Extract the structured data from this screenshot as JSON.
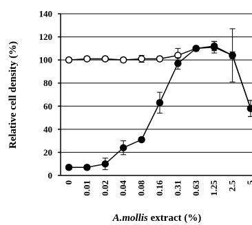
{
  "chart_data": {
    "type": "line",
    "xlabel": {
      "italic": "A.mollis",
      "rest": " extract (%)"
    },
    "ylabel": "Relative cell density (%)",
    "ylim": [
      0,
      140
    ],
    "yticks": [
      0,
      20,
      40,
      60,
      80,
      100,
      120,
      140
    ],
    "grid": true,
    "legend": "none",
    "categories": [
      "0",
      "0.01",
      "0.02",
      "0.04",
      "0.08",
      "0.16",
      "0.31",
      "0.63",
      "1.25",
      "2.5",
      "5"
    ],
    "series": [
      {
        "marker": "open-circle",
        "color": "#000000",
        "values": [
          100,
          101,
          101,
          100,
          101,
          101,
          104,
          110,
          112,
          104,
          58
        ],
        "errors": [
          2,
          2,
          2,
          2,
          3,
          2,
          6,
          2,
          4,
          23,
          7
        ]
      },
      {
        "marker": "filled-circle",
        "color": "#000000",
        "values": [
          7,
          7,
          10,
          24,
          31,
          63,
          97,
          110,
          111,
          104,
          58
        ],
        "errors": [
          2,
          2,
          5,
          6,
          2,
          9,
          5,
          2,
          5,
          3,
          7
        ]
      }
    ]
  }
}
